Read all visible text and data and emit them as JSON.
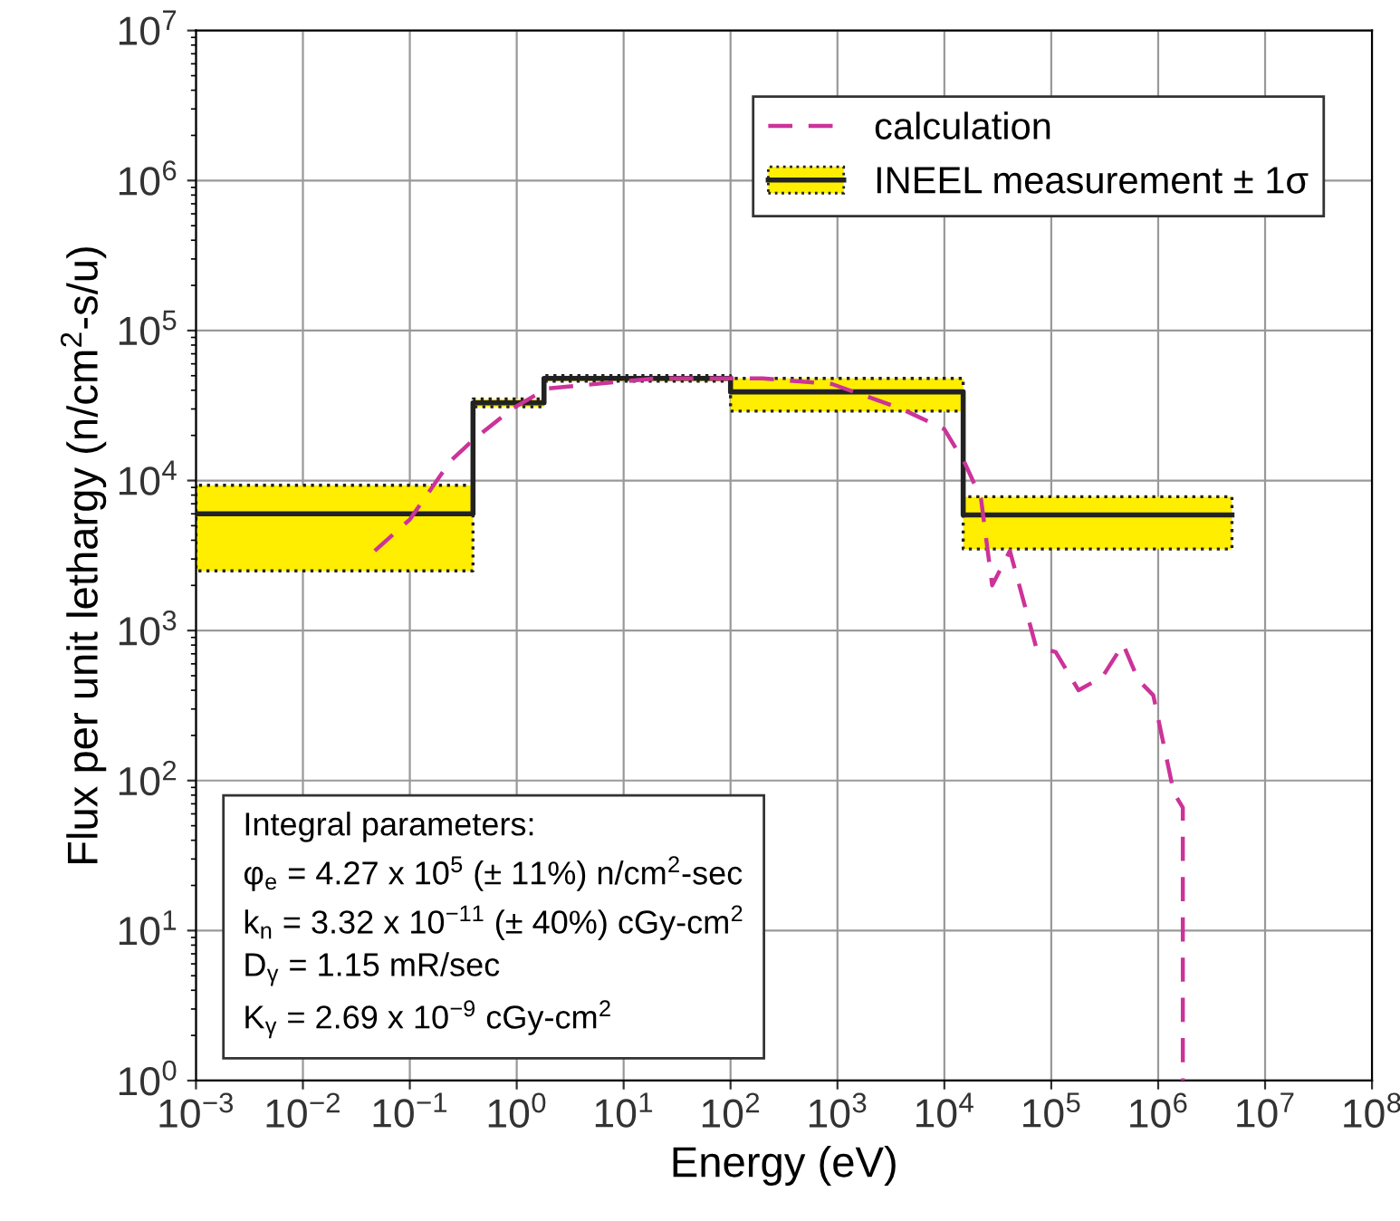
{
  "chart_data": {
    "type": "line",
    "xlabel": "Energy (eV)",
    "ylabel": "Flux per unit lethargy (n/cm$^{2}$-s/u)",
    "log": "xy",
    "grid": true,
    "legend": "top right",
    "xlim": [
      0.001,
      100000000
    ],
    "ylim": [
      1,
      10000000
    ],
    "xticks": [
      {
        "value": 0.001,
        "label": "10$^{−3}$"
      },
      {
        "value": 0.01,
        "label": "10$^{−2}$"
      },
      {
        "value": 0.1,
        "label": "10$^{−1}$"
      },
      {
        "value": 1,
        "label": "10$^{0}$"
      },
      {
        "value": 10,
        "label": "10$^{1}$"
      },
      {
        "value": 100,
        "label": "10$^{2}$"
      },
      {
        "value": 1000,
        "label": "10$^{3}$"
      },
      {
        "value": 10000,
        "label": "10$^{4}$"
      },
      {
        "value": 100000,
        "label": "10$^{5}$"
      },
      {
        "value": 1000000,
        "label": "10$^{6}$"
      },
      {
        "value": 10000000,
        "label": "10$^{7}$"
      },
      {
        "value": 100000000,
        "label": "10$^{8}$"
      }
    ],
    "yticks": [
      {
        "value": 1,
        "label": "10$^{0}$"
      },
      {
        "value": 10,
        "label": "10$^{1}$"
      },
      {
        "value": 100,
        "label": "10$^{2}$"
      },
      {
        "value": 1000,
        "label": "10$^{3}$"
      },
      {
        "value": 10000,
        "label": "10$^{4}$"
      },
      {
        "value": 100000,
        "label": "10$^{5}$"
      },
      {
        "value": 1000000,
        "label": "10$^{6}$"
      },
      {
        "value": 10000000,
        "label": "10$^{7}$"
      }
    ],
    "series": [
      {
        "name": "calculation",
        "color": "#cc3399",
        "line_style": "dashed",
        "x": [
          0.047,
          0.1,
          0.24,
          0.39,
          0.9,
          1.9,
          20,
          200,
          890,
          4000,
          10000,
          15600,
          22000,
          28000,
          41000,
          72000,
          110000,
          180000,
          300000,
          470000,
          650000,
          900000,
          1400000,
          1700000,
          1700000
        ],
        "values": [
          3400,
          5500,
          13500,
          18600,
          30000,
          41000,
          48000,
          48000,
          44000,
          30000,
          22000,
          13000,
          7600,
          2000,
          3400,
          780,
          720,
          400,
          490,
          810,
          470,
          370,
          83,
          66,
          1
        ]
      },
      {
        "name": "INEEL measurement ± 1σ",
        "type": "step",
        "color": "#222222",
        "line_style": "solid",
        "x": [
          0.001,
          0.39,
          1.8,
          100,
          15000,
          4900000
        ],
        "values": [
          6000,
          33000,
          48000,
          39000,
          5900,
          5900
        ],
        "lower": [
          2500,
          31000,
          46000,
          29000,
          3500,
          3500
        ],
        "upper": [
          9300,
          35000,
          50000,
          48000,
          7800,
          7800
        ]
      }
    ],
    "annotations": [
      "Integral parameters:",
      "φ$_{e}$ = 4.27 x 10$^{5}$ (± 11%) n/cm$^{2}$-sec",
      "k$_{n}$ = 3.32 x 10$^{−11}$ (± 40%) cGy-cm$^{2}$",
      "D$_{γ}$ = 1.15 mR/sec",
      "K$_{γ}$ = 2.69 x 10$^{−9}$ cGy-cm$^{2}$"
    ]
  }
}
